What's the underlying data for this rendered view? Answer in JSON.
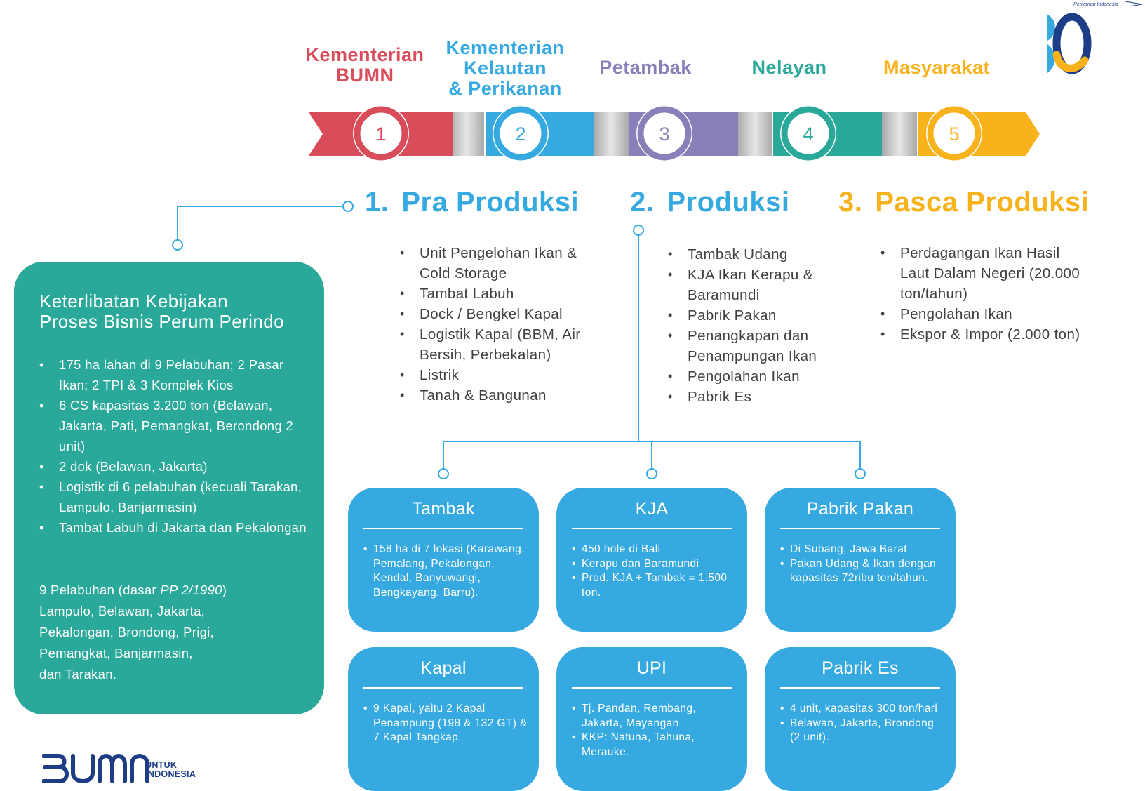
{
  "logo": {
    "name": "perikanan-indonesia-30-logo",
    "text": "30",
    "caption": "Perikanan Indonesia"
  },
  "stakeholders": [
    {
      "number": "1",
      "lines": [
        "Kementerian",
        "BUMN"
      ],
      "color": "#d94c5a"
    },
    {
      "number": "2",
      "lines": [
        "Kementerian",
        "Kelautan",
        "& Perikanan"
      ],
      "color": "#36a9e1"
    },
    {
      "number": "3",
      "lines": [
        "Petambak"
      ],
      "color": "#8b7fba"
    },
    {
      "number": "4",
      "lines": [
        "Nelayan"
      ],
      "color": "#2aa899"
    },
    {
      "number": "5",
      "lines": [
        "Masyarakat"
      ],
      "color": "#f7b21c"
    }
  ],
  "sections": [
    {
      "number": "1.",
      "title": "Pra Produksi",
      "color": "#36a9e1",
      "items": [
        "Unit Pengelohan Ikan & Cold Storage",
        "Tambat Labuh",
        "Dock / Bengkel Kapal",
        "Logistik Kapal (BBM, Air Bersih, Perbekalan)",
        "Listrik",
        "Tanah & Bangunan"
      ]
    },
    {
      "number": "2.",
      "title": "Produksi",
      "color": "#36a9e1",
      "items": [
        "Tambak Udang",
        "KJA Ikan Kerapu & Baramundi",
        "Pabrik Pakan",
        "Penangkapan dan Penampungan Ikan",
        "Pengolahan Ikan",
        "Pabrik Es"
      ]
    },
    {
      "number": "3.",
      "title": "Pasca Produksi",
      "color": "#f7b21c",
      "items": [
        "Perdagangan Ikan Hasil Laut Dalam Negeri (20.000 ton/tahun)",
        "Pengolahan Ikan",
        "Ekspor & Impor (2.000 ton)"
      ]
    }
  ],
  "policy_panel": {
    "title_lines": [
      "Keterlibatan Kebijakan",
      "Proses Bisnis Perum Perindo"
    ],
    "items": [
      "175 ha lahan di 9 Pelabuhan; 2 Pasar Ikan; 2 TPI & 3 Komplek Kios",
      "6 CS kapasitas 3.200 ton (Belawan, Jakarta, Pati, Pemangkat, Berondong 2 unit)",
      "2 dok (Belawan, Jakarta)",
      "Logistik di 6 pelabuhan (kecuali Tarakan, Lampulo, Banjarmasin)",
      "Tambat Labuh di Jakarta dan Pekalongan"
    ],
    "ports_heading": "9 Pelabuhan (dasar ",
    "ports_heading_italic": "PP 2/1990",
    "ports_heading_end": ")",
    "ports_lines": [
      "Lampulo, Belawan, Jakarta,",
      "Pekalongan, Brondong, Prigi,",
      "Pemangkat, Banjarmasin,",
      "dan Tarakan."
    ],
    "color": "#2aa899"
  },
  "cards": [
    {
      "title": "Tambak",
      "items": [
        "158 ha di 7 lokasi (Karawang, Pemalang, Pekalongan, Kendal, Banyuwangi, Bengkayang, Barru)."
      ]
    },
    {
      "title": "KJA",
      "items": [
        "450 hole di Bali",
        "Kerapu dan Baramundi",
        "Prod. KJA + Tambak = 1.500 ton."
      ]
    },
    {
      "title": "Pabrik Pakan",
      "items": [
        "Di Subang, Jawa Barat",
        "Pakan Udang & Ikan dengan kapasitas 72ribu ton/tahun."
      ]
    },
    {
      "title": "Kapal",
      "items": [
        "9 Kapal, yaitu 2 Kapal Penampung (198 & 132 GT) & 7 Kapal Tangkap."
      ]
    },
    {
      "title": "UPI",
      "items": [
        "Tj. Pandan, Rembang, Jakarta, Mayangan",
        "KKP: Natuna, Tahuna, Merauke."
      ]
    },
    {
      "title": "Pabrik Es",
      "items": [
        "4 unit, kapasitas 300 ton/hari",
        "Belawan, Jakarta, Brondong (2 unit)."
      ]
    }
  ],
  "card_color": "#36a9e1",
  "footer_logo": {
    "name": "bumn-untuk-indonesia-logo",
    "text": "BUMN",
    "tag_lines": [
      "UNTUK",
      "INDONESIA"
    ]
  }
}
